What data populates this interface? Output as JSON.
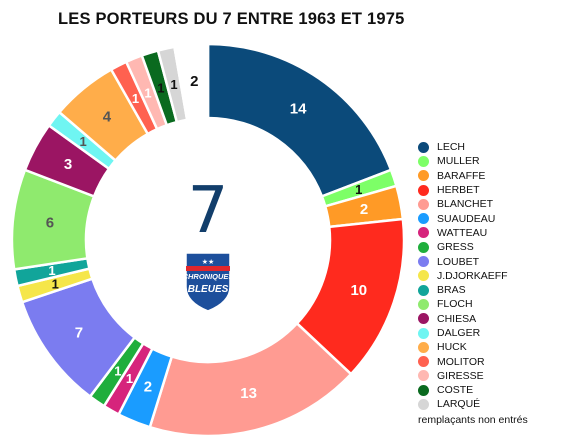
{
  "title": "LES PORTEURS DU 7 ENTRE 1963 ET 1975",
  "center": {
    "number": "7",
    "logo_text_top": "CHRONIQUES",
    "logo_text_bottom": "BLEUES",
    "logo_stars": "★★"
  },
  "legend_note": "remplaçants non entrés",
  "chart_data": {
    "type": "pie",
    "variant": "donut",
    "title": "LES PORTEURS DU 7 ENTRE 1963 ET 1975",
    "legend_position": "right",
    "slices": [
      {
        "name": "LECH",
        "value": 14,
        "color": "#0b4a7a"
      },
      {
        "name": "MULLER",
        "value": 1,
        "color": "#7dff67"
      },
      {
        "name": "BARAFFE",
        "value": 2,
        "color": "#ff9a26"
      },
      {
        "name": "HERBET",
        "value": 10,
        "color": "#ff2a1e"
      },
      {
        "name": "BLANCHET",
        "value": 13,
        "color": "#ff9b92"
      },
      {
        "name": "SUAUDEAU",
        "value": 2,
        "color": "#1a9cff"
      },
      {
        "name": "WATTEAU",
        "value": 1,
        "color": "#d6247c"
      },
      {
        "name": "GRESS",
        "value": 1,
        "color": "#1fae3c"
      },
      {
        "name": "LOUBET",
        "value": 7,
        "color": "#7b7cf0"
      },
      {
        "name": "J.DJORKAEFF",
        "value": 1,
        "color": "#f5e64a"
      },
      {
        "name": "BRAS",
        "value": 1,
        "color": "#11a59a"
      },
      {
        "name": "FLOCH",
        "value": 6,
        "color": "#8fea6e"
      },
      {
        "name": "CHIESA",
        "value": 3,
        "color": "#9b1563"
      },
      {
        "name": "DALGER",
        "value": 1,
        "color": "#6ff5f2"
      },
      {
        "name": "HUCK",
        "value": 4,
        "color": "#ffad4a"
      },
      {
        "name": "MOLITOR",
        "value": 1,
        "color": "#ff6150"
      },
      {
        "name": "GIRESSE",
        "value": 1,
        "color": "#ffb8b2"
      },
      {
        "name": "COSTE",
        "value": 1,
        "color": "#0a6a1f"
      },
      {
        "name": "LARQUÉ",
        "value": 1,
        "color": "#d6d6d6"
      },
      {
        "name": "remplaçants non entrés",
        "value": 2,
        "color": "#ffffff"
      }
    ]
  }
}
